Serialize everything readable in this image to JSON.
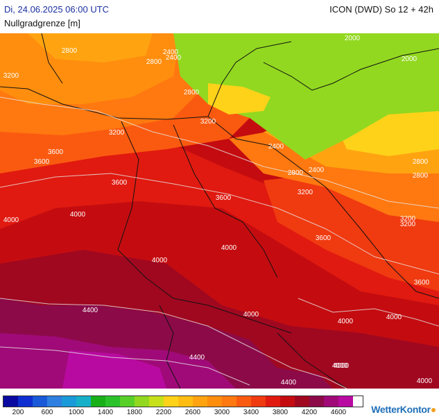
{
  "header": {
    "datetime": "Di, 24.06.2025 06:00 UTC",
    "model": "ICON (DWD) So 12 + 42h",
    "parameter": "Nullgradgrenze [m]"
  },
  "map": {
    "contour_labels": [
      "2800",
      "2800",
      "2400",
      "2800",
      "2400",
      "2000",
      "2000",
      "3200",
      "3200",
      "3200",
      "3200",
      "2800",
      "3600",
      "3600",
      "2400",
      "3600",
      "2400",
      "2800",
      "3200",
      "2800",
      "4000",
      "4000",
      "3600",
      "3200",
      "4000",
      "4000",
      "3600",
      "4000",
      "3600",
      "4400",
      "4000",
      "4000",
      "4000",
      "4400",
      "4000",
      "4400",
      "4000"
    ]
  },
  "legend": {
    "colors": [
      "#0a0aa0",
      "#0f2fd0",
      "#1a5ad8",
      "#2e7fe0",
      "#1a9ad8",
      "#16b0c8",
      "#18b018",
      "#2ac22a",
      "#58d028",
      "#92d820",
      "#c6e01a",
      "#ffd21a",
      "#ffbc12",
      "#ffa410",
      "#ff8e0e",
      "#ff7810",
      "#fa5a10",
      "#f03a10",
      "#e01a10",
      "#c40c10",
      "#a00820",
      "#8c0a48",
      "#a00a78",
      "#b80aa0"
    ],
    "labels": [
      "200",
      "600",
      "1000",
      "1400",
      "1800",
      "2200",
      "2600",
      "3000",
      "3400",
      "3800",
      "4200",
      "4600"
    ]
  },
  "brand": {
    "name": "WetterKontor"
  }
}
